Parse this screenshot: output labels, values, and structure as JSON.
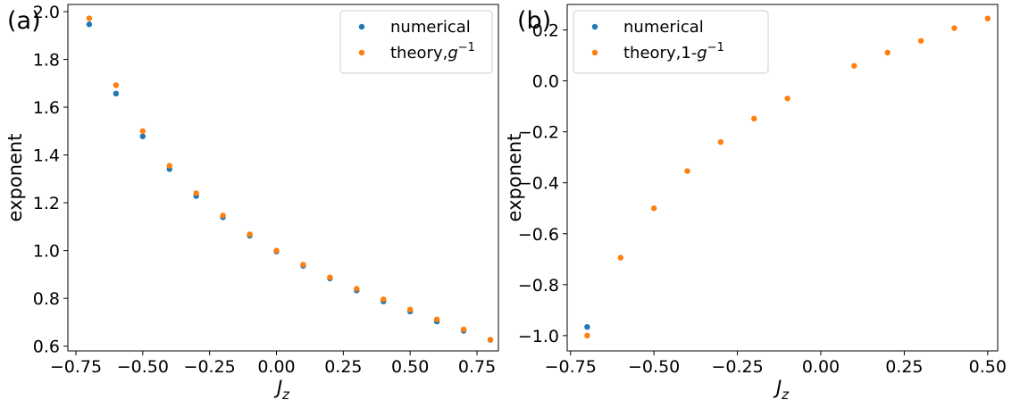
{
  "colors": {
    "numerical": "#1f77b4",
    "theory": "#ff7f0e"
  },
  "chart_data": [
    {
      "type": "scatter",
      "panel_label": "(a)",
      "xlabel_main": "J",
      "xlabel_sub": "z",
      "ylabel": "exponent",
      "xlim": [
        -0.78,
        0.83
      ],
      "ylim": [
        0.58,
        2.03
      ],
      "xticks": [
        -0.75,
        -0.5,
        -0.25,
        0.0,
        0.25,
        0.5,
        0.75
      ],
      "xtick_labels": [
        "−0.75",
        "−0.50",
        "−0.25",
        "0.00",
        "0.25",
        "0.50",
        "0.75"
      ],
      "yticks": [
        0.6,
        0.8,
        1.0,
        1.2,
        1.4,
        1.6,
        1.8,
        2.0
      ],
      "ytick_labels": [
        "0.6",
        "0.8",
        "1.0",
        "1.2",
        "1.4",
        "1.6",
        "1.8",
        "2.0"
      ],
      "legend_position": "top-right",
      "legend": [
        {
          "series": 0,
          "text": "numerical",
          "sup": ""
        },
        {
          "series": 1,
          "text": "theory,",
          "math": "g",
          "sup": "−1"
        }
      ],
      "series": [
        {
          "name": "numerical",
          "x": [
            -0.7,
            -0.6,
            -0.5,
            -0.4,
            -0.3,
            -0.2,
            -0.1,
            0.0,
            0.1,
            0.2,
            0.3,
            0.4,
            0.5,
            0.6,
            0.7,
            0.8
          ],
          "y": [
            1.947,
            1.657,
            1.478,
            1.341,
            1.228,
            1.139,
            1.062,
            0.996,
            0.936,
            0.883,
            0.833,
            0.787,
            0.745,
            0.703,
            0.664,
            0.626
          ]
        },
        {
          "name": "theory,g^-1",
          "x": [
            -0.7,
            -0.6,
            -0.5,
            -0.4,
            -0.3,
            -0.2,
            -0.1,
            0.0,
            0.1,
            0.2,
            0.3,
            0.4,
            0.5,
            0.6,
            0.7,
            0.8
          ],
          "y": [
            1.972,
            1.692,
            1.5,
            1.355,
            1.24,
            1.147,
            1.068,
            1.0,
            0.941,
            0.888,
            0.84,
            0.796,
            0.753,
            0.712,
            0.67,
            0.627
          ]
        }
      ]
    },
    {
      "type": "scatter",
      "panel_label": "(b)",
      "xlabel_main": "J",
      "xlabel_sub": "z",
      "ylabel": "exponent",
      "xlim": [
        -0.76,
        0.53
      ],
      "ylim": [
        -1.06,
        0.3
      ],
      "xticks": [
        -0.75,
        -0.5,
        -0.25,
        0.0,
        0.25,
        0.5
      ],
      "xtick_labels": [
        "−0.75",
        "−0.50",
        "−0.25",
        "0.00",
        "0.25",
        "0.50"
      ],
      "yticks": [
        -1.0,
        -0.8,
        -0.6,
        -0.4,
        -0.2,
        0.0,
        0.2
      ],
      "ytick_labels": [
        "−1.0",
        "−0.8",
        "−0.6",
        "−0.4",
        "−0.2",
        "0.0",
        "0.2"
      ],
      "legend_position": "top-left",
      "legend": [
        {
          "series": 0,
          "text": "numerical",
          "sup": ""
        },
        {
          "series": 1,
          "text": "theory,1-",
          "math": "g",
          "sup": "−1"
        }
      ],
      "series": [
        {
          "name": "numerical",
          "x": [
            -0.7
          ],
          "y": [
            -0.966
          ]
        },
        {
          "name": "theory,1-g^-1",
          "x": [
            -0.7,
            -0.6,
            -0.5,
            -0.4,
            -0.3,
            -0.2,
            -0.1,
            0.1,
            0.2,
            0.3,
            0.4,
            0.5
          ],
          "y": [
            -1.0,
            -0.694,
            -0.5,
            -0.354,
            -0.24,
            -0.148,
            -0.069,
            0.059,
            0.111,
            0.157,
            0.207,
            0.245
          ]
        }
      ]
    }
  ]
}
